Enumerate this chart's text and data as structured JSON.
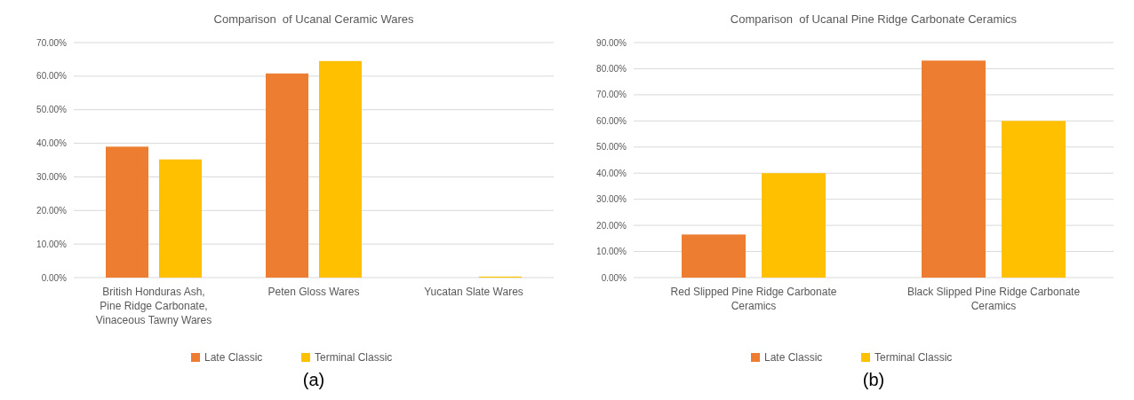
{
  "chart_data": [
    {
      "type": "bar",
      "title": "Comparison  of Ucanal Ceramic Wares",
      "categories": [
        "British Honduras Ash, Pine Ridge Carbonate, Vinaceous Tawny Wares",
        "Peten Gloss Wares",
        "Yucatan Slate Wares"
      ],
      "series": [
        {
          "name": "Late Classic",
          "color": "#ed7d31",
          "values": [
            39,
            60.8,
            0
          ]
        },
        {
          "name": "Terminal Classic",
          "color": "#ffc000",
          "values": [
            35.2,
            64.5,
            0.3
          ]
        }
      ],
      "ylim": [
        0,
        70
      ],
      "yticks": [
        {
          "value": 0,
          "label": "0.00%"
        },
        {
          "value": 10,
          "label": "10.00%"
        },
        {
          "value": 20,
          "label": "20.00%"
        },
        {
          "value": 30,
          "label": "30.00%"
        },
        {
          "value": 40,
          "label": "40.00%"
        },
        {
          "value": 50,
          "label": "50.00%"
        },
        {
          "value": 60,
          "label": "60.00%"
        },
        {
          "value": 70,
          "label": "70.00%"
        }
      ],
      "grid": "y",
      "legend": "bottom",
      "annotations": [
        "(a)"
      ]
    },
    {
      "type": "bar",
      "title": "Comparison  of Ucanal Pine Ridge Carbonate Ceramics",
      "categories": [
        "Red Slipped Pine Ridge Carbonate Ceramics",
        "Black Slipped Pine Ridge Carbonate Ceramics"
      ],
      "series": [
        {
          "name": "Late Classic",
          "color": "#ed7d31",
          "values": [
            16.5,
            83.1
          ]
        },
        {
          "name": "Terminal Classic",
          "color": "#ffc000",
          "values": [
            40,
            60
          ]
        }
      ],
      "ylim": [
        0,
        90
      ],
      "yticks": [
        {
          "value": 0,
          "label": "0.00%"
        },
        {
          "value": 10,
          "label": "10.00%"
        },
        {
          "value": 20,
          "label": "20.00%"
        },
        {
          "value": 30,
          "label": "30.00%"
        },
        {
          "value": 40,
          "label": "40.00%"
        },
        {
          "value": 50,
          "label": "50.00%"
        },
        {
          "value": 60,
          "label": "60.00%"
        },
        {
          "value": 70,
          "label": "70.00%"
        },
        {
          "value": 80,
          "label": "80.00%"
        },
        {
          "value": 90,
          "label": "90.00%"
        }
      ],
      "grid": "y",
      "legend": "bottom",
      "annotations": [
        "(b)"
      ]
    }
  ]
}
